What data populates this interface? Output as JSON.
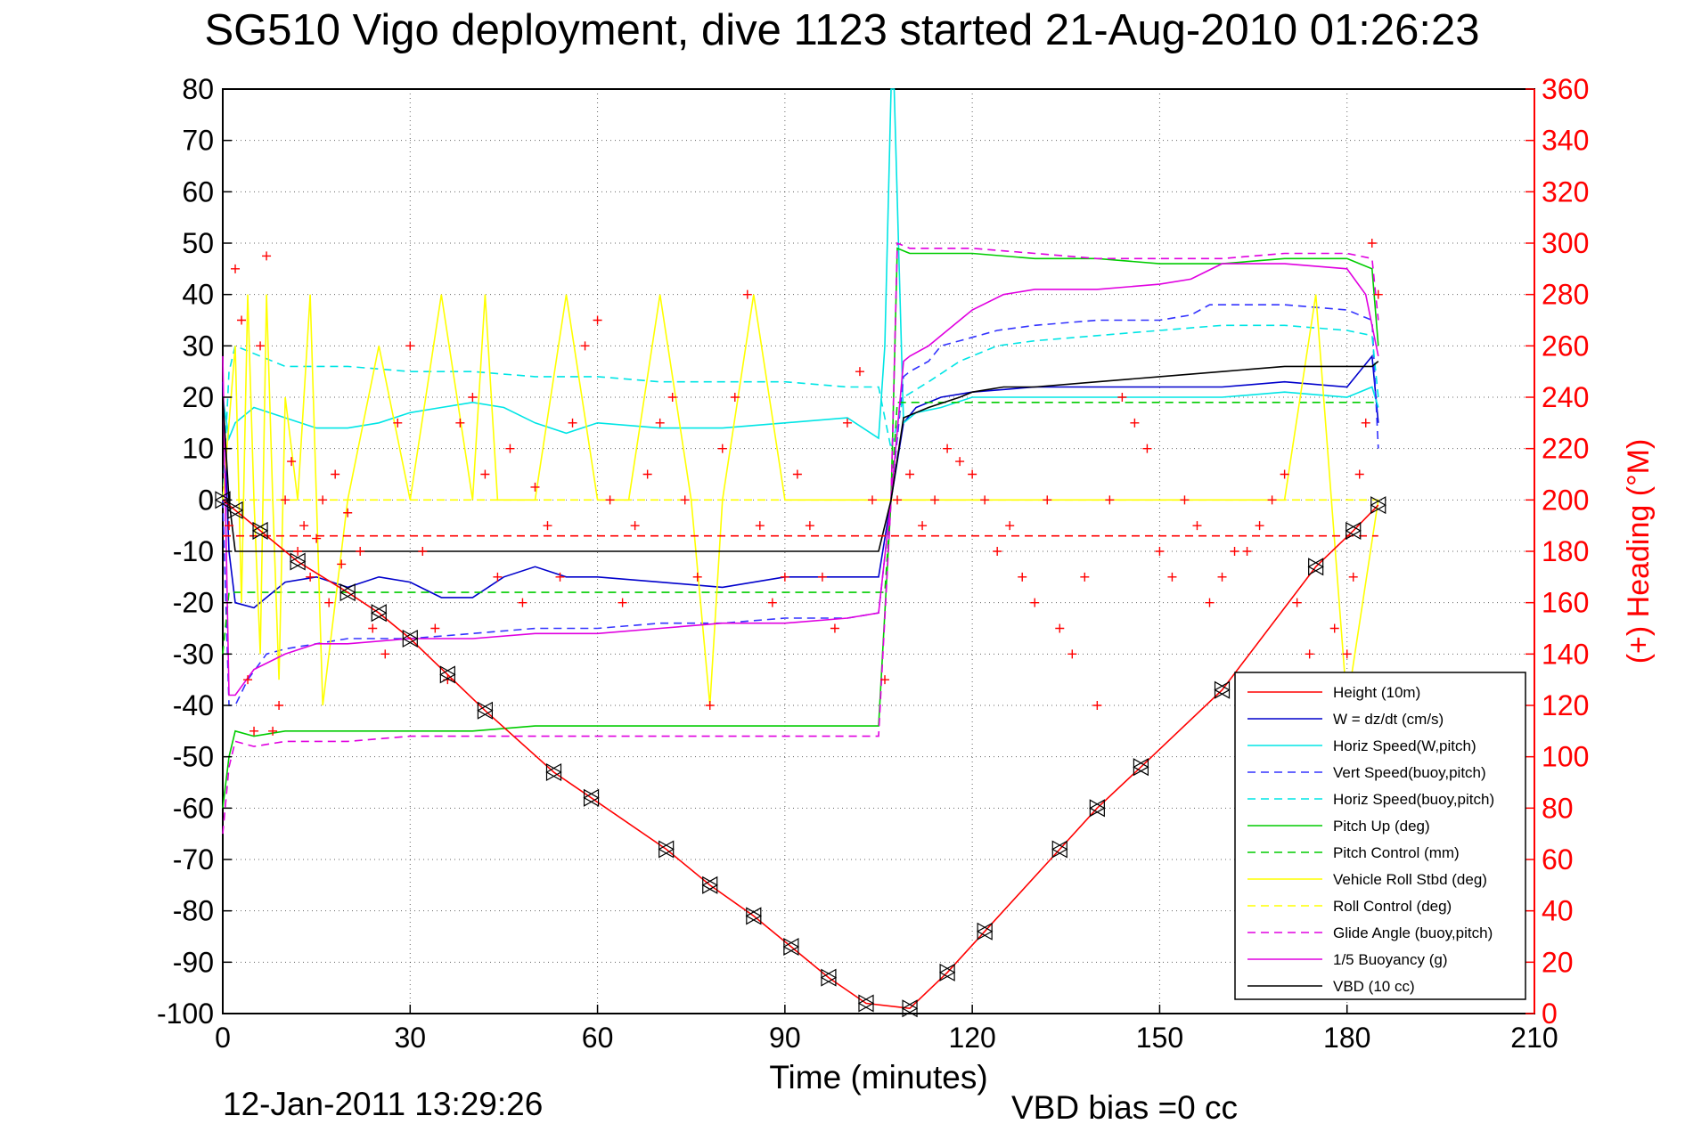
{
  "chart_data": {
    "type": "line",
    "title": "SG510 Vigo deployment, dive 1123 started 21-Aug-2010 01:26:23",
    "xlabel": "Time (minutes)",
    "ylabel_right": "(+) Heading (°M)",
    "xlim": [
      0,
      210
    ],
    "ylim_left": [
      -100,
      80
    ],
    "ylim_right": [
      0,
      360
    ],
    "x_ticks": [
      "0",
      "30",
      "60",
      "90",
      "120",
      "150",
      "180",
      "210"
    ],
    "y_ticks_left": [
      "80",
      "70",
      "60",
      "50",
      "40",
      "30",
      "20",
      "10",
      "0",
      "-10",
      "-20",
      "-30",
      "-40",
      "-50",
      "-60",
      "-70",
      "-80",
      "-90",
      "-100"
    ],
    "y_ticks_right": [
      "360",
      "340",
      "320",
      "300",
      "280",
      "260",
      "240",
      "220",
      "200",
      "180",
      "160",
      "140",
      "120",
      "100",
      "80",
      "60",
      "40",
      "20",
      "0"
    ],
    "grid": true,
    "legend_position": "bottom-right",
    "footer_timestamp": "12-Jan-2011 13:29:26",
    "footer_bias": "VBD bias =0 cc",
    "series": [
      {
        "name": "Height (10m)",
        "color": "#ff0000",
        "style": "solid",
        "x": [
          0,
          2,
          6,
          12,
          20,
          25,
          30,
          36,
          42,
          53,
          59,
          71,
          78,
          85,
          91,
          97,
          103,
          110,
          116,
          122,
          134,
          140,
          147,
          160,
          175,
          181,
          185
        ],
        "y": [
          0,
          -2,
          -6,
          -12,
          -18,
          -22,
          -27,
          -34,
          -41,
          -53,
          -58,
          -68,
          -75,
          -81,
          -87,
          -93,
          -98,
          -99,
          -92,
          -84,
          -68,
          -60,
          -52,
          -37,
          -13,
          -6,
          -1
        ]
      },
      {
        "name": "W = dz/dt (cm/s)",
        "color": "#0000cc",
        "style": "solid",
        "x": [
          0,
          1,
          2,
          5,
          10,
          15,
          20,
          25,
          30,
          35,
          40,
          45,
          50,
          55,
          60,
          70,
          80,
          90,
          100,
          105,
          107,
          109,
          111,
          115,
          120,
          130,
          140,
          150,
          160,
          170,
          180,
          184,
          185
        ],
        "y": [
          23,
          -10,
          -20,
          -21,
          -16,
          -15,
          -17,
          -15,
          -16,
          -19,
          -19,
          -15,
          -13,
          -15,
          -15,
          -16,
          -17,
          -15,
          -15,
          -15,
          0,
          15,
          18,
          20,
          21,
          22,
          22,
          22,
          22,
          23,
          22,
          28,
          15
        ]
      },
      {
        "name": "Horiz Speed(W,pitch)",
        "color": "#00e5e5",
        "style": "solid",
        "x": [
          0,
          1,
          2,
          5,
          10,
          15,
          20,
          25,
          30,
          35,
          40,
          45,
          50,
          55,
          60,
          70,
          80,
          90,
          100,
          105,
          106,
          107,
          107.5,
          109,
          111,
          115,
          120,
          130,
          140,
          150,
          160,
          170,
          180,
          184,
          185
        ],
        "y": [
          20,
          12,
          15,
          18,
          16,
          14,
          14,
          15,
          17,
          18,
          19,
          18,
          15,
          13,
          15,
          14,
          14,
          15,
          16,
          12,
          30,
          80,
          80,
          15,
          17,
          18,
          20,
          20,
          20,
          20,
          20,
          21,
          20,
          22,
          18
        ]
      },
      {
        "name": "Vert Speed(buoy,pitch)",
        "color": "#3333ff",
        "style": "dashed",
        "x": [
          0,
          1,
          2,
          4,
          7,
          10,
          15,
          20,
          30,
          40,
          50,
          60,
          70,
          80,
          90,
          100,
          105,
          107,
          109,
          110,
          113,
          115,
          118,
          121,
          124,
          130,
          140,
          150,
          155,
          158,
          160,
          170,
          180,
          184,
          185
        ],
        "y": [
          0,
          -40,
          -40,
          -35,
          -30,
          -29,
          -28,
          -27,
          -27,
          -26,
          -25,
          -25,
          -24,
          -24,
          -23,
          -23,
          -22,
          0,
          24,
          25,
          27,
          30,
          31,
          32,
          33,
          34,
          35,
          35,
          36,
          38,
          38,
          38,
          37,
          35,
          10
        ]
      },
      {
        "name": "Horiz Speed(buoy,pitch)",
        "color": "#00e5e5",
        "style": "dashed",
        "x": [
          0,
          1,
          2,
          4,
          10,
          20,
          30,
          40,
          50,
          60,
          70,
          80,
          90,
          100,
          105,
          107,
          109,
          113,
          118,
          124,
          130,
          140,
          150,
          160,
          170,
          180,
          184,
          185
        ],
        "y": [
          0,
          25,
          30,
          29,
          26,
          26,
          25,
          25,
          24,
          24,
          23,
          23,
          23,
          22,
          22,
          10,
          20,
          23,
          27,
          30,
          31,
          32,
          33,
          34,
          34,
          33,
          32,
          20
        ]
      },
      {
        "name": "Pitch Up (deg)",
        "color": "#00cc00",
        "style": "solid",
        "x": [
          0,
          1,
          2,
          5,
          10,
          20,
          30,
          40,
          50,
          60,
          70,
          80,
          90,
          100,
          105,
          107,
          108,
          110,
          120,
          130,
          140,
          150,
          160,
          170,
          180,
          184,
          185
        ],
        "y": [
          -60,
          -50,
          -45,
          -46,
          -45,
          -45,
          -45,
          -45,
          -44,
          -44,
          -44,
          -44,
          -44,
          -44,
          -44,
          0,
          49,
          48,
          48,
          47,
          47,
          46,
          46,
          47,
          47,
          45,
          30
        ]
      },
      {
        "name": "Pitch Control (mm)",
        "color": "#00cc00",
        "style": "dashed",
        "x": [
          0,
          1,
          2,
          106,
          107,
          108,
          185
        ],
        "y": [
          -30,
          -18,
          -18,
          -18,
          0,
          19,
          19
        ]
      },
      {
        "name": "Vehicle Roll Stbd (deg)",
        "color": "#ffff00",
        "style": "solid",
        "x": [
          0,
          2,
          3,
          4,
          5,
          6,
          7,
          8,
          9,
          10,
          12,
          14,
          16,
          20,
          25,
          30,
          35,
          40,
          42,
          44,
          50,
          55,
          60,
          65,
          70,
          75,
          78,
          80,
          85,
          90,
          95,
          100,
          105,
          108,
          110,
          120,
          130,
          140,
          150,
          160,
          170,
          175,
          180,
          185
        ],
        "y": [
          0,
          30,
          -20,
          40,
          0,
          -30,
          40,
          0,
          -35,
          20,
          0,
          40,
          -40,
          0,
          30,
          0,
          40,
          0,
          40,
          0,
          0,
          40,
          0,
          0,
          40,
          0,
          -40,
          0,
          40,
          0,
          0,
          0,
          0,
          0,
          0,
          0,
          0,
          0,
          0,
          0,
          0,
          40,
          -40,
          0
        ]
      },
      {
        "name": "Roll Control (deg)",
        "color": "#ffff00",
        "style": "dashed",
        "x": [
          0,
          185
        ],
        "y": [
          0,
          0
        ]
      },
      {
        "name": "Glide Angle (buoy,pitch)",
        "color": "#e000e0",
        "style": "dashed",
        "x": [
          0,
          1,
          2,
          5,
          10,
          20,
          30,
          40,
          50,
          60,
          70,
          80,
          90,
          100,
          105,
          107,
          108,
          110,
          120,
          130,
          140,
          150,
          160,
          170,
          180,
          184,
          185
        ],
        "y": [
          -65,
          -52,
          -47,
          -48,
          -47,
          -47,
          -46,
          -46,
          -46,
          -46,
          -46,
          -46,
          -46,
          -46,
          -46,
          0,
          50,
          49,
          49,
          48,
          47,
          47,
          47,
          48,
          48,
          47,
          35
        ]
      },
      {
        "name": "1/5 Buoyancy (g)",
        "color": "#e000e0",
        "style": "solid",
        "x": [
          0,
          1,
          2,
          5,
          10,
          15,
          20,
          30,
          40,
          50,
          60,
          70,
          80,
          90,
          100,
          105,
          107,
          109,
          110,
          113,
          115,
          118,
          120,
          125,
          130,
          140,
          150,
          155,
          160,
          170,
          180,
          183,
          185
        ],
        "y": [
          28,
          -38,
          -38,
          -33,
          -30,
          -28,
          -28,
          -27,
          -27,
          -26,
          -26,
          -25,
          -24,
          -24,
          -23,
          -22,
          0,
          27,
          28,
          30,
          32,
          35,
          37,
          40,
          41,
          41,
          42,
          43,
          46,
          46,
          45,
          40,
          28
        ]
      },
      {
        "name": "VBD (10 cc)",
        "color": "#000000",
        "style": "solid",
        "x": [
          0,
          1,
          2,
          4,
          10,
          20,
          30,
          40,
          50,
          60,
          70,
          80,
          90,
          100,
          105,
          107,
          109,
          113,
          118,
          120,
          125,
          130,
          140,
          150,
          160,
          170,
          180,
          184,
          185
        ],
        "y": [
          20,
          0,
          -10,
          -10,
          -10,
          -10,
          -10,
          -10,
          -10,
          -10,
          -10,
          -10,
          -10,
          -10,
          -10,
          0,
          16,
          18,
          20,
          21,
          22,
          22,
          23,
          24,
          25,
          26,
          26,
          26,
          27
        ]
      },
      {
        "name": "(+) Heading (°M) mean",
        "axis": "right",
        "color": "#ff0000",
        "style": "dashed",
        "in_legend": false,
        "x": [
          0,
          185
        ],
        "y": [
          186,
          186
        ]
      },
      {
        "name": "(+) Heading (°M)",
        "axis": "right",
        "color": "#ff0000",
        "style": "plus",
        "in_legend": false,
        "x": [
          1,
          2,
          3,
          4,
          5,
          6,
          7,
          8,
          9,
          10,
          11,
          12,
          13,
          14,
          15,
          16,
          17,
          18,
          19,
          20,
          22,
          24,
          26,
          28,
          30,
          32,
          34,
          36,
          38,
          40,
          42,
          44,
          46,
          48,
          50,
          52,
          54,
          56,
          58,
          60,
          62,
          64,
          66,
          68,
          70,
          72,
          74,
          76,
          78,
          80,
          82,
          84,
          86,
          88,
          90,
          92,
          94,
          96,
          98,
          100,
          102,
          104,
          106,
          108,
          110,
          112,
          114,
          116,
          118,
          120,
          122,
          124,
          126,
          128,
          130,
          132,
          134,
          136,
          138,
          140,
          142,
          144,
          146,
          148,
          150,
          152,
          154,
          156,
          158,
          160,
          162,
          164,
          166,
          168,
          170,
          172,
          174,
          176,
          178,
          180,
          181,
          182,
          183,
          184,
          185
        ],
        "y": [
          190,
          290,
          270,
          130,
          110,
          260,
          295,
          110,
          120,
          200,
          215,
          180,
          190,
          170,
          185,
          200,
          160,
          210,
          175,
          195,
          180,
          150,
          140,
          230,
          260,
          180,
          150,
          130,
          230,
          240,
          210,
          170,
          220,
          160,
          205,
          190,
          170,
          230,
          260,
          270,
          200,
          160,
          190,
          210,
          230,
          240,
          200,
          170,
          120,
          220,
          240,
          280,
          190,
          160,
          170,
          210,
          190,
          170,
          150,
          230,
          250,
          200,
          130,
          200,
          210,
          190,
          200,
          220,
          215,
          210,
          200,
          180,
          190,
          170,
          160,
          200,
          150,
          140,
          170,
          120,
          200,
          240,
          230,
          220,
          180,
          170,
          200,
          190,
          160,
          170,
          180,
          180,
          190,
          200,
          210,
          160,
          140,
          130,
          150,
          140,
          170,
          210,
          230,
          300,
          280
        ]
      }
    ]
  }
}
